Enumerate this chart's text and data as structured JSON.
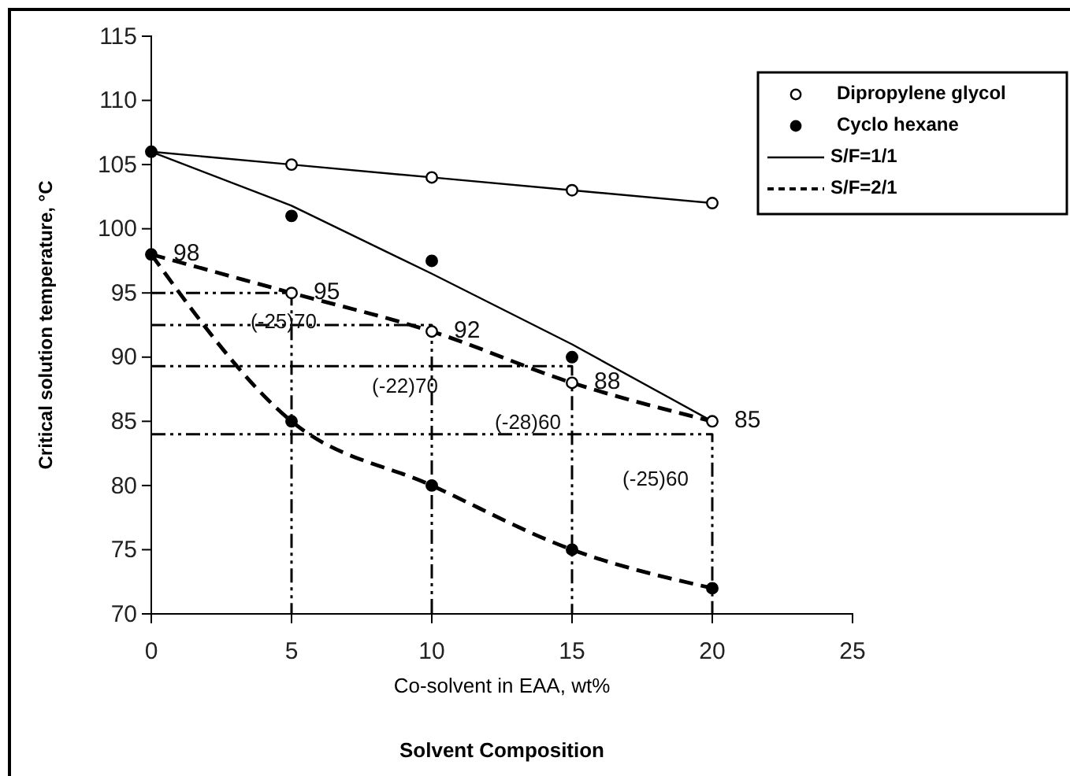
{
  "chart_data": {
    "type": "line",
    "title": "Solvent Composition",
    "xlabel": "Co-solvent in EAA, wt%",
    "ylabel": "Critical solution temperature, °C",
    "xlim": [
      0,
      25
    ],
    "xticks": [
      0,
      5,
      10,
      15,
      20,
      25
    ],
    "ylim": [
      70,
      115
    ],
    "yticks": [
      70,
      75,
      80,
      85,
      90,
      95,
      100,
      105,
      110,
      115
    ],
    "grid": false,
    "legend": "top right",
    "series": [
      {
        "name": "Dipropylene glycol",
        "type": "scatter",
        "marker": "circle",
        "color": "#ffffff",
        "x": [
          5,
          10,
          15,
          20,
          5,
          10,
          15,
          20
        ],
        "values": [
          105,
          104,
          103,
          102,
          95,
          92,
          88,
          85
        ]
      },
      {
        "name": "Cyclo hexane",
        "type": "scatter",
        "marker": "circle",
        "color": "#000000",
        "x": [
          0,
          5,
          10,
          15,
          0,
          5,
          10,
          15,
          20
        ],
        "values": [
          106,
          101,
          97.5,
          90,
          98,
          85,
          80,
          75,
          72
        ]
      },
      {
        "name": "S/F=1/1",
        "line_style": "solid",
        "color": "#000000",
        "x": [
          0,
          5,
          10,
          15,
          20
        ],
        "values": [
          106,
          105,
          104,
          103,
          102
        ]
      },
      {
        "type": "line",
        "line_style": "solid",
        "color": "#000000",
        "x": [
          0,
          5,
          10,
          15,
          20
        ],
        "values": [
          106,
          101.8,
          96.5,
          91,
          85
        ]
      },
      {
        "name": "S/F=2/1",
        "type": "line",
        "line_style": "dashed",
        "color": "#000000",
        "x": [
          0,
          5,
          10,
          15,
          20
        ],
        "values": [
          98,
          95,
          92,
          88,
          85
        ]
      },
      {
        "type": "line",
        "line_style": "dashed",
        "color": "#000000",
        "x": [
          0,
          5,
          10,
          15,
          20
        ],
        "values": [
          98,
          85,
          80,
          75,
          72
        ]
      },
      {
        "type": "line",
        "line_style": "dashdot",
        "color": "#000000",
        "x": [
          0,
          5,
          5
        ],
        "values": [
          95,
          95,
          70
        ]
      },
      {
        "type": "line",
        "line_style": "dashdot",
        "color": "#000000",
        "x": [
          0,
          10,
          10
        ],
        "values": [
          92.5,
          92.5,
          70
        ]
      },
      {
        "type": "line",
        "line_style": "dashdot",
        "color": "#000000",
        "x": [
          0,
          15,
          15
        ],
        "values": [
          89.3,
          89.3,
          70
        ]
      },
      {
        "type": "line",
        "line_style": "dashdot",
        "color": "#000000",
        "x": [
          0,
          20,
          20
        ],
        "values": [
          84,
          84,
          70
        ]
      }
    ],
    "annotations": [
      {
        "text": "98",
        "x": 0,
        "y": 98
      },
      {
        "text": "95",
        "x": 5,
        "y": 95
      },
      {
        "text": "92",
        "x": 10,
        "y": 92
      },
      {
        "text": "88",
        "x": 15,
        "y": 88
      },
      {
        "text": "85",
        "x": 20,
        "y": 85
      },
      "(-25)70",
      "(-22)70",
      "(-28)60",
      "(-25)60"
    ]
  }
}
